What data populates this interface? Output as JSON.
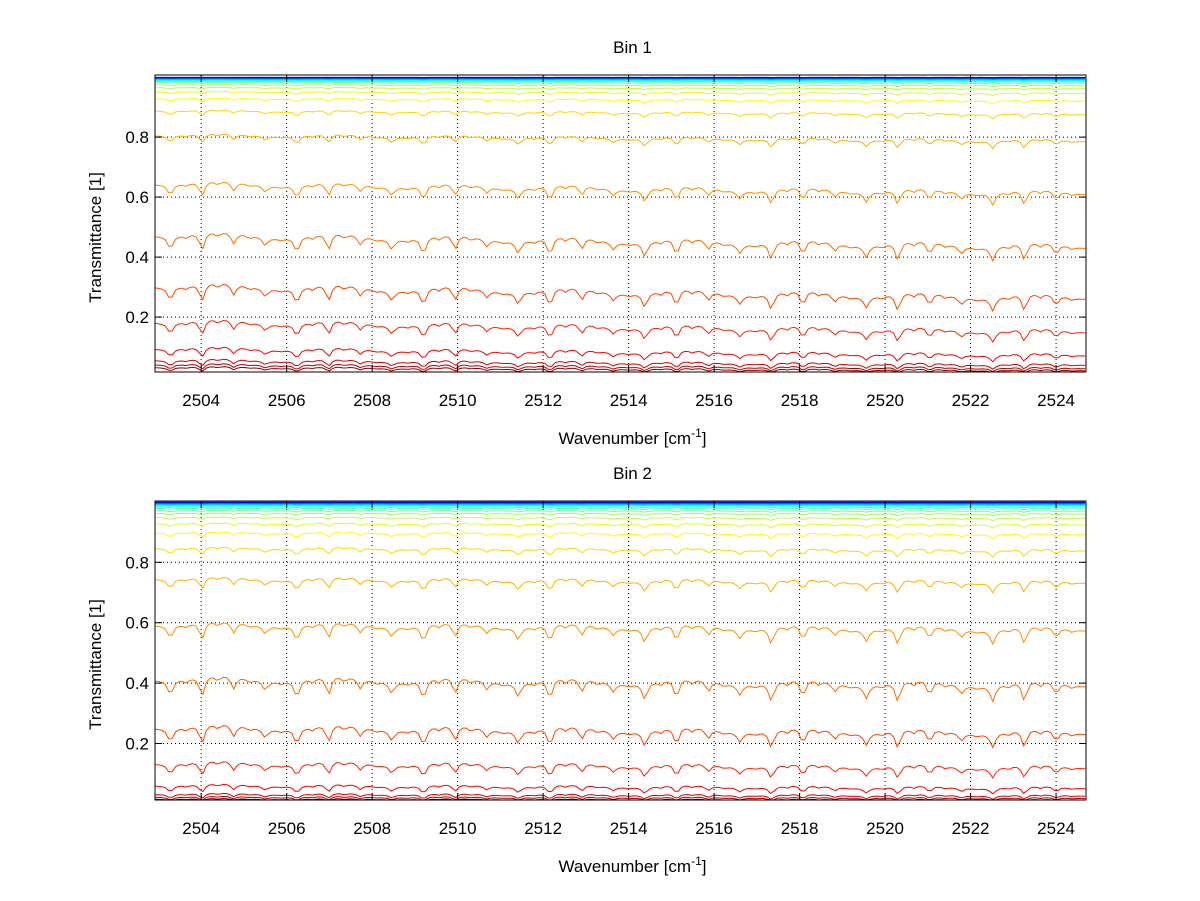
{
  "chart_data": [
    {
      "type": "line",
      "title": "Bin 1",
      "xlabel": "Wavenumber [cm",
      "xlabel_sup": "-1",
      "xlabel_end": "]",
      "ylabel": "Transmittance [1]",
      "xlim": [
        2502.92,
        2524.7
      ],
      "ylim": [
        0.017,
        1.007
      ],
      "xticks": [
        2504,
        2506,
        2508,
        2510,
        2512,
        2514,
        2516,
        2518,
        2520,
        2522,
        2524
      ],
      "yticks": [
        0.2,
        0.4,
        0.6,
        0.8
      ],
      "grid": true,
      "colormap": "jet",
      "baseline_transmittance": [
        0.035,
        0.045,
        0.06,
        0.1,
        0.19,
        0.31,
        0.48,
        0.65,
        0.81,
        0.89,
        0.93,
        0.952,
        0.966,
        0.975,
        0.982,
        0.986,
        0.989,
        0.991,
        0.993,
        0.994,
        0.995,
        0.996,
        0.997,
        0.998,
        0.9985,
        0.999
      ],
      "line_positions": [
        2503.28,
        2504.02,
        2504.76,
        2505.5,
        2506.24,
        2506.98,
        2507.72,
        2508.46,
        2509.2,
        2509.94,
        2510.68,
        2511.42,
        2512.16,
        2512.9,
        2513.64,
        2514.38,
        2515.12,
        2515.86,
        2516.6,
        2517.34,
        2518.08,
        2518.82,
        2519.56,
        2520.3,
        2521.04,
        2521.78,
        2522.52,
        2523.26,
        2524.0
      ],
      "line_depth": 0.18,
      "slope": 0.12
    },
    {
      "type": "line",
      "title": "Bin 2",
      "xlabel": "Wavenumber [cm",
      "xlabel_sup": "-1",
      "xlabel_end": "]",
      "ylabel": "Transmittance [1]",
      "xlim": [
        2502.92,
        2524.7
      ],
      "ylim": [
        0.013,
        1.003
      ],
      "xticks": [
        2504,
        2506,
        2508,
        2510,
        2512,
        2514,
        2516,
        2518,
        2520,
        2522,
        2524
      ],
      "yticks": [
        0.2,
        0.4,
        0.6,
        0.8
      ],
      "grid": true,
      "colormap": "jet",
      "baseline_transmittance": [
        0.018,
        0.025,
        0.035,
        0.065,
        0.14,
        0.26,
        0.42,
        0.6,
        0.75,
        0.85,
        0.9,
        0.93,
        0.95,
        0.963,
        0.972,
        0.979,
        0.984,
        0.988,
        0.991,
        0.993,
        0.995,
        0.996,
        0.997,
        0.998,
        0.9985,
        0.999
      ],
      "line_positions": [
        2503.28,
        2504.02,
        2504.76,
        2505.5,
        2506.24,
        2506.98,
        2507.72,
        2508.46,
        2509.2,
        2509.94,
        2510.68,
        2511.42,
        2512.16,
        2512.9,
        2513.64,
        2514.38,
        2515.12,
        2515.86,
        2516.6,
        2517.34,
        2518.08,
        2518.82,
        2519.56,
        2520.3,
        2521.04,
        2521.78,
        2522.52,
        2523.26,
        2524.0
      ],
      "line_depth": 0.2,
      "slope": 0.06
    }
  ]
}
